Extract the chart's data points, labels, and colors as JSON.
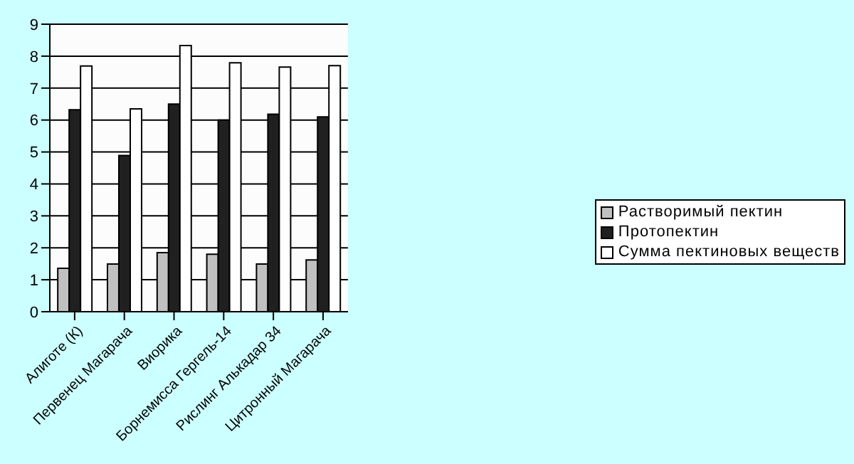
{
  "chart_data": {
    "type": "bar",
    "categories": [
      "Алиготе (К)",
      "Первенец Магарача",
      "Виорика",
      "Борнемисса Гергель-14",
      "Рислинг Алькадар 34",
      "Цитронный Магарача"
    ],
    "series": [
      {
        "name": "Растворимый пектин",
        "color": "#c0c0c0",
        "values": [
          1.36,
          1.49,
          1.85,
          1.8,
          1.49,
          1.62
        ]
      },
      {
        "name": "Протопектин",
        "color": "#202020",
        "values": [
          6.32,
          4.89,
          6.5,
          6.0,
          6.18,
          6.1
        ]
      },
      {
        "name": "Сумма пектиновых веществ",
        "color": "#ffffff",
        "values": [
          7.69,
          6.35,
          8.33,
          7.79,
          7.66,
          7.7
        ]
      }
    ],
    "ylim": [
      0,
      9
    ],
    "yticks": [
      0,
      1,
      2,
      3,
      4,
      5,
      6,
      7,
      8,
      9
    ],
    "grid": "y",
    "legend": "right"
  }
}
